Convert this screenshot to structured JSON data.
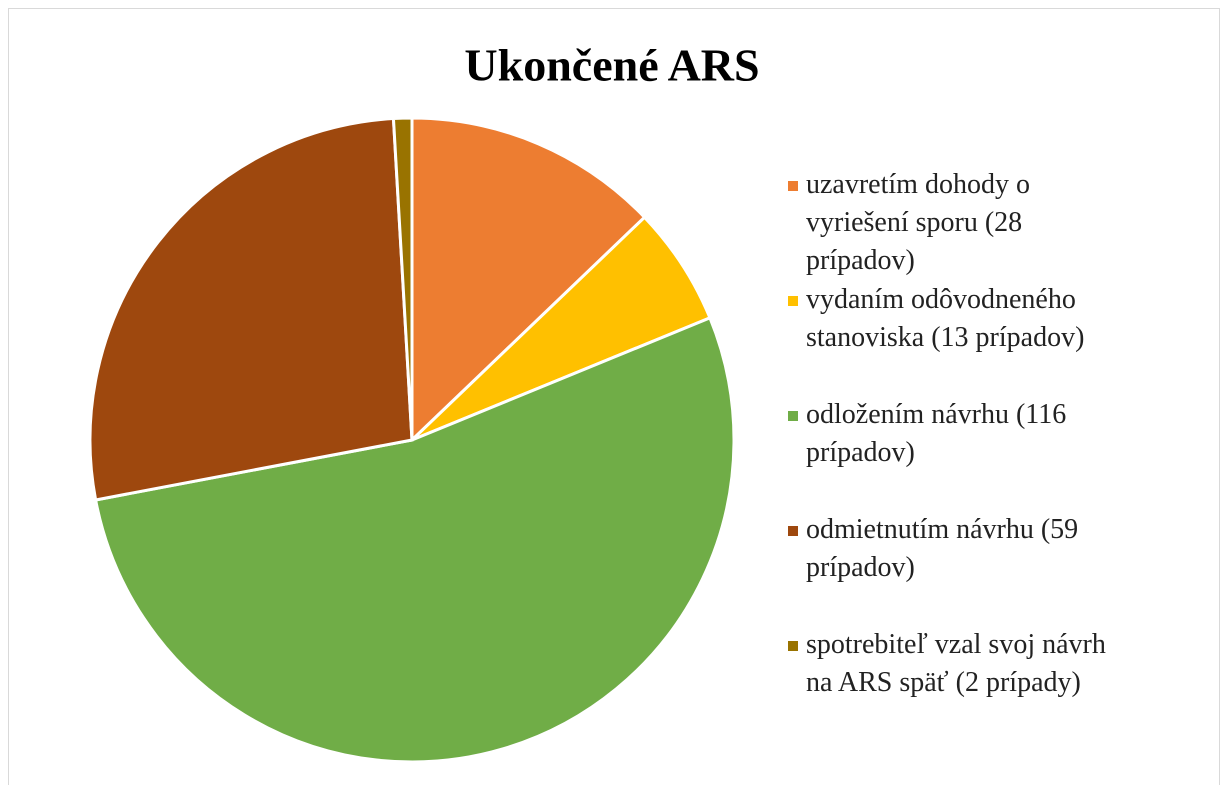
{
  "chart_data": {
    "type": "pie",
    "title": "Ukončené ARS",
    "categories": [
      "uzavretím dohody o vyriešení sporu (28 prípadov)",
      "vydaním odôvodneného stanoviska (13 prípadov)",
      "odložením návrhu (116 prípadov)",
      "odmietnutím návrhu (59 prípadov)",
      "spotrebiteľ vzal svoj návrh na ARS späť (2 prípady)"
    ],
    "values": [
      28,
      13,
      116,
      59,
      2
    ],
    "colors": [
      "#ed7d31",
      "#ffc000",
      "#70ad47",
      "#9e480e",
      "#997300"
    ],
    "legend": "right"
  }
}
